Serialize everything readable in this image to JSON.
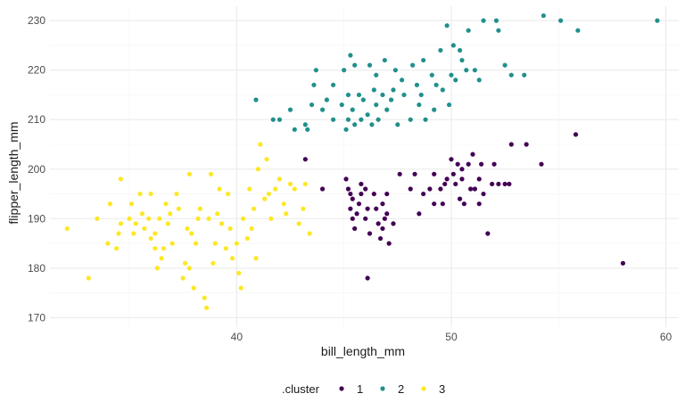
{
  "chart_data": {
    "type": "scatter",
    "title": "",
    "xlabel": "bill_length_mm",
    "ylabel": "flipper_length_mm",
    "xlim": [
      31.3,
      60.6
    ],
    "ylim": [
      168.1,
      232.9
    ],
    "xticks": [
      40,
      50,
      60
    ],
    "yticks": [
      170,
      180,
      190,
      200,
      210,
      220,
      230
    ],
    "grid": true,
    "legend": {
      "title": ".cluster",
      "position": "bottom"
    },
    "series": [
      {
        "name": "1",
        "color": "#440154",
        "points": [
          [
            43.2,
            202
          ],
          [
            44.0,
            196
          ],
          [
            45.1,
            198
          ],
          [
            45.2,
            196
          ],
          [
            45.3,
            192
          ],
          [
            45.3,
            195
          ],
          [
            45.4,
            194
          ],
          [
            45.4,
            190
          ],
          [
            45.5,
            188
          ],
          [
            45.6,
            191
          ],
          [
            45.7,
            193
          ],
          [
            45.8,
            197
          ],
          [
            45.8,
            195
          ],
          [
            46.0,
            196
          ],
          [
            46.0,
            190
          ],
          [
            46.1,
            192
          ],
          [
            46.1,
            178
          ],
          [
            46.2,
            187
          ],
          [
            46.4,
            195
          ],
          [
            46.5,
            192
          ],
          [
            46.6,
            189
          ],
          [
            46.7,
            186
          ],
          [
            46.8,
            188
          ],
          [
            46.8,
            193
          ],
          [
            46.9,
            190
          ],
          [
            47.0,
            191
          ],
          [
            47.1,
            185
          ],
          [
            47.0,
            195
          ],
          [
            47.3,
            189
          ],
          [
            47.6,
            199
          ],
          [
            48.1,
            196
          ],
          [
            48.3,
            199
          ],
          [
            48.5,
            191
          ],
          [
            48.7,
            195
          ],
          [
            49.0,
            196
          ],
          [
            49.2,
            193
          ],
          [
            49.2,
            199
          ],
          [
            49.5,
            196
          ],
          [
            49.6,
            193
          ],
          [
            49.7,
            197
          ],
          [
            49.8,
            198
          ],
          [
            50.0,
            202
          ],
          [
            50.1,
            199
          ],
          [
            50.2,
            197
          ],
          [
            50.3,
            201
          ],
          [
            50.4,
            194
          ],
          [
            50.5,
            200
          ],
          [
            50.5,
            198
          ],
          [
            50.6,
            193
          ],
          [
            50.8,
            201
          ],
          [
            50.9,
            196
          ],
          [
            51.0,
            203
          ],
          [
            51.1,
            196
          ],
          [
            51.3,
            193
          ],
          [
            51.3,
            198
          ],
          [
            51.4,
            201
          ],
          [
            51.5,
            195
          ],
          [
            51.7,
            187
          ],
          [
            51.9,
            197
          ],
          [
            52.0,
            201
          ],
          [
            52.2,
            197
          ],
          [
            52.5,
            197
          ],
          [
            52.7,
            197
          ],
          [
            52.8,
            205
          ],
          [
            53.5,
            205
          ],
          [
            54.2,
            201
          ],
          [
            55.8,
            207
          ],
          [
            58.0,
            181
          ]
        ]
      },
      {
        "name": "2",
        "color": "#21908C",
        "points": [
          [
            40.9,
            214
          ],
          [
            41.7,
            210
          ],
          [
            42.0,
            210
          ],
          [
            42.5,
            212
          ],
          [
            42.7,
            208
          ],
          [
            43.2,
            209
          ],
          [
            43.3,
            208
          ],
          [
            43.5,
            213
          ],
          [
            43.6,
            217
          ],
          [
            43.7,
            220
          ],
          [
            44.0,
            212
          ],
          [
            44.2,
            214
          ],
          [
            44.5,
            210
          ],
          [
            44.5,
            217
          ],
          [
            44.9,
            213
          ],
          [
            45.0,
            220
          ],
          [
            45.1,
            208
          ],
          [
            45.2,
            210
          ],
          [
            45.2,
            215
          ],
          [
            45.3,
            223
          ],
          [
            45.4,
            212
          ],
          [
            45.5,
            221
          ],
          [
            45.5,
            209
          ],
          [
            45.7,
            215
          ],
          [
            45.8,
            210
          ],
          [
            45.9,
            214
          ],
          [
            46.1,
            211
          ],
          [
            46.2,
            221
          ],
          [
            46.3,
            209
          ],
          [
            46.4,
            216
          ],
          [
            46.5,
            213
          ],
          [
            46.5,
            219
          ],
          [
            46.6,
            210
          ],
          [
            46.8,
            215
          ],
          [
            46.9,
            222
          ],
          [
            47.0,
            212
          ],
          [
            47.2,
            214
          ],
          [
            47.3,
            216
          ],
          [
            47.4,
            220
          ],
          [
            47.5,
            209
          ],
          [
            47.7,
            218
          ],
          [
            47.8,
            215
          ],
          [
            48.1,
            210
          ],
          [
            48.2,
            221
          ],
          [
            48.4,
            217
          ],
          [
            48.5,
            213
          ],
          [
            48.6,
            215
          ],
          [
            48.7,
            222
          ],
          [
            48.8,
            210
          ],
          [
            49.1,
            219
          ],
          [
            49.2,
            212
          ],
          [
            49.3,
            217
          ],
          [
            49.5,
            224
          ],
          [
            49.6,
            216
          ],
          [
            49.8,
            229
          ],
          [
            49.9,
            213
          ],
          [
            50.0,
            219
          ],
          [
            50.1,
            225
          ],
          [
            50.2,
            218
          ],
          [
            50.4,
            224
          ],
          [
            50.5,
            222
          ],
          [
            50.7,
            220
          ],
          [
            50.8,
            228
          ],
          [
            51.1,
            220
          ],
          [
            51.3,
            218
          ],
          [
            51.5,
            230
          ],
          [
            52.1,
            230
          ],
          [
            52.2,
            228
          ],
          [
            52.5,
            221
          ],
          [
            52.8,
            219
          ],
          [
            53.4,
            219
          ],
          [
            54.3,
            231
          ],
          [
            55.1,
            230
          ],
          [
            55.9,
            228
          ],
          [
            59.6,
            230
          ]
        ]
      },
      {
        "name": "3",
        "color": "#FDE725",
        "points": [
          [
            32.1,
            188
          ],
          [
            33.1,
            178
          ],
          [
            33.5,
            190
          ],
          [
            34.0,
            185
          ],
          [
            34.1,
            193
          ],
          [
            34.4,
            184
          ],
          [
            34.5,
            187
          ],
          [
            34.6,
            198
          ],
          [
            34.6,
            189
          ],
          [
            35.0,
            190
          ],
          [
            35.1,
            193
          ],
          [
            35.2,
            187
          ],
          [
            35.3,
            189
          ],
          [
            35.5,
            195
          ],
          [
            35.6,
            191
          ],
          [
            35.7,
            188
          ],
          [
            35.9,
            190
          ],
          [
            36.0,
            186
          ],
          [
            36.0,
            195
          ],
          [
            36.2,
            187
          ],
          [
            36.2,
            184
          ],
          [
            36.3,
            180
          ],
          [
            36.4,
            190
          ],
          [
            36.5,
            182
          ],
          [
            36.6,
            184
          ],
          [
            36.7,
            193
          ],
          [
            36.8,
            189
          ],
          [
            36.9,
            191
          ],
          [
            37.0,
            185
          ],
          [
            37.2,
            195
          ],
          [
            37.3,
            192
          ],
          [
            37.5,
            178
          ],
          [
            37.6,
            181
          ],
          [
            37.7,
            188
          ],
          [
            37.8,
            180
          ],
          [
            37.8,
            199
          ],
          [
            37.9,
            187
          ],
          [
            38.0,
            176
          ],
          [
            38.1,
            185
          ],
          [
            38.2,
            190
          ],
          [
            38.3,
            192
          ],
          [
            38.5,
            174
          ],
          [
            38.6,
            172
          ],
          [
            38.7,
            190
          ],
          [
            38.8,
            199
          ],
          [
            38.9,
            181
          ],
          [
            39.0,
            185
          ],
          [
            39.1,
            191
          ],
          [
            39.2,
            196
          ],
          [
            39.3,
            189
          ],
          [
            39.5,
            184
          ],
          [
            39.6,
            195
          ],
          [
            39.7,
            188
          ],
          [
            39.8,
            182
          ],
          [
            40.0,
            185
          ],
          [
            40.1,
            179
          ],
          [
            40.2,
            176
          ],
          [
            40.3,
            190
          ],
          [
            40.5,
            186
          ],
          [
            40.6,
            196
          ],
          [
            40.7,
            188
          ],
          [
            40.8,
            192
          ],
          [
            40.9,
            182
          ],
          [
            41.0,
            200
          ],
          [
            41.1,
            205
          ],
          [
            41.3,
            194
          ],
          [
            41.4,
            202
          ],
          [
            41.5,
            195
          ],
          [
            41.6,
            190
          ],
          [
            41.8,
            196
          ],
          [
            42.0,
            198
          ],
          [
            42.2,
            193
          ],
          [
            42.3,
            191
          ],
          [
            42.5,
            197
          ],
          [
            42.7,
            196
          ],
          [
            42.9,
            189
          ],
          [
            43.1,
            192
          ],
          [
            43.2,
            197
          ],
          [
            43.4,
            187
          ]
        ]
      }
    ]
  }
}
